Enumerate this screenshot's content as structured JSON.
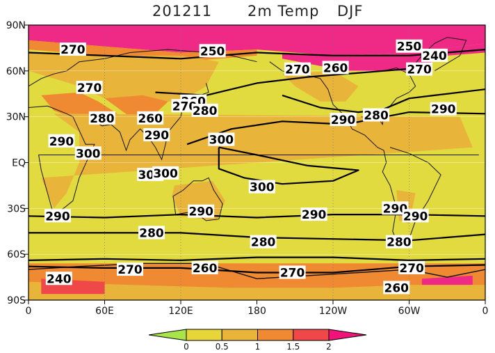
{
  "title": {
    "date": "201211",
    "variable": "2m Temp",
    "season": "DJF"
  },
  "axes": {
    "x_ticks": [
      "0",
      "60E",
      "120E",
      "180",
      "120W",
      "60W",
      "0"
    ],
    "y_ticks": [
      "90N",
      "60N",
      "30N",
      "EQ",
      "30S",
      "60S",
      "90S"
    ]
  },
  "contour_labels": [
    {
      "text": "270",
      "lon": 35,
      "lat": 74
    },
    {
      "text": "250",
      "lon": 145,
      "lat": 73
    },
    {
      "text": "250",
      "lon": 300,
      "lat": 76
    },
    {
      "text": "240",
      "lon": 320,
      "lat": 70
    },
    {
      "text": "270",
      "lon": 212,
      "lat": 61
    },
    {
      "text": "260",
      "lon": 242,
      "lat": 62
    },
    {
      "text": "270",
      "lon": 308,
      "lat": 61
    },
    {
      "text": "270",
      "lon": 48,
      "lat": 49
    },
    {
      "text": "260",
      "lon": 130,
      "lat": 40
    },
    {
      "text": "270",
      "lon": 123,
      "lat": 37
    },
    {
      "text": "280",
      "lon": 139,
      "lat": 34
    },
    {
      "text": "280",
      "lon": 58,
      "lat": 29
    },
    {
      "text": "260",
      "lon": 96,
      "lat": 29
    },
    {
      "text": "290",
      "lon": 248,
      "lat": 28
    },
    {
      "text": "280",
      "lon": 274,
      "lat": 31
    },
    {
      "text": "290",
      "lon": 327,
      "lat": 35
    },
    {
      "text": "290",
      "lon": 101,
      "lat": 18
    },
    {
      "text": "300",
      "lon": 152,
      "lat": 15
    },
    {
      "text": "290",
      "lon": 26,
      "lat": 14
    },
    {
      "text": "300",
      "lon": 47,
      "lat": 6
    },
    {
      "text": "300",
      "lon": 96,
      "lat": -8
    },
    {
      "text": "300",
      "lon": 108,
      "lat": -7
    },
    {
      "text": "300",
      "lon": 184,
      "lat": -16
    },
    {
      "text": "290",
      "lon": 23,
      "lat": -35
    },
    {
      "text": "290",
      "lon": 136,
      "lat": -32
    },
    {
      "text": "290",
      "lon": 225,
      "lat": -34
    },
    {
      "text": "290",
      "lon": 289,
      "lat": -30
    },
    {
      "text": "290",
      "lon": 305,
      "lat": -35
    },
    {
      "text": "280",
      "lon": 97,
      "lat": -46
    },
    {
      "text": "280",
      "lon": 185,
      "lat": -52
    },
    {
      "text": "280",
      "lon": 292,
      "lat": -52
    },
    {
      "text": "270",
      "lon": 80,
      "lat": -70
    },
    {
      "text": "260",
      "lon": 139,
      "lat": -69
    },
    {
      "text": "270",
      "lon": 208,
      "lat": -72
    },
    {
      "text": "270",
      "lon": 302,
      "lat": -69
    },
    {
      "text": "240",
      "lon": 24,
      "lat": -76
    },
    {
      "text": "260",
      "lon": 290,
      "lat": -82
    }
  ],
  "colorbar": {
    "ticks": [
      "0",
      "0.5",
      "1",
      "1.5",
      "2"
    ],
    "colors": [
      "#a8e44a",
      "#e6d63a",
      "#e8b43a",
      "#f08a32",
      "#f04848",
      "#f0147a"
    ]
  },
  "legend_colors": {
    "ocean": "#e2db3f",
    "land_warm": "#e8b43a",
    "polar_orange": "#f08a32",
    "polar_red": "#f04848",
    "polar_magenta": "#ee2a86"
  }
}
